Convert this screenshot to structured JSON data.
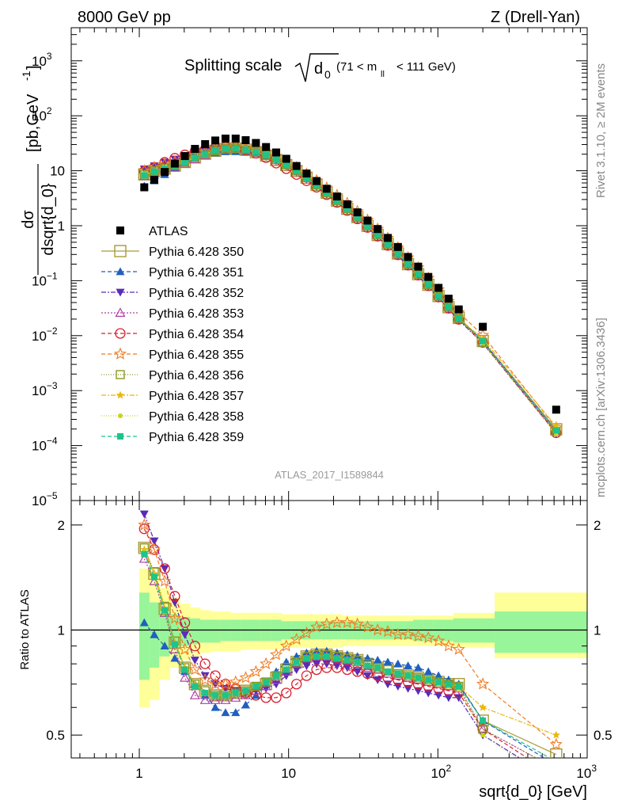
{
  "header": {
    "left": "8000 GeV pp",
    "right": "Z (Drell-Yan)"
  },
  "side": {
    "rivet": "Rivet 3.1.10, ≥ 2M events",
    "mcplots": "mcplots.cern.ch [arXiv:1306.3436]"
  },
  "watermark": "ATLAS_2017_I1589844",
  "chart_data": {
    "type": "scatter",
    "title": "Splitting scale √d0 (71 < m_ll < 111 GeV)",
    "title_main": "Splitting scale",
    "title_sym": "d",
    "title_sub": "0",
    "title_cut": "(71 < m",
    "title_cut_sub": "ll",
    "title_cut_end": "< 111 GeV)",
    "xlabel": "sqrt{d_0} [GeV]",
    "ylabel_top": "dσ / dsqrt{d_0} [pb,GeV⁻¹]",
    "ylabel_num": "dσ",
    "ylabel_den": "dsqrt{d_0}",
    "ylabel_unit": "[pb,GeV",
    "ylabel_unit_sup": "-1",
    "ylabel_unit_end": "]",
    "ylabel_ratio": "Ratio to ATLAS",
    "x_scale": "log",
    "y_scale": "log",
    "xlim": [
      0.35,
      1000
    ],
    "ylim": [
      1e-05,
      4000
    ],
    "ratio_ylim": [
      0.43,
      2.35
    ],
    "x_ticks": [
      {
        "value": 1,
        "label": "1"
      },
      {
        "value": 10,
        "label": "10"
      },
      {
        "value": 100,
        "label": "10",
        "sup": "2"
      },
      {
        "value": 1000,
        "label": "10",
        "sup": "3"
      }
    ],
    "y_ticks": [
      {
        "value": 1000,
        "label": "10",
        "sup": "3"
      },
      {
        "value": 100,
        "label": "10",
        "sup": "2"
      },
      {
        "value": 10,
        "label": "10"
      },
      {
        "value": 1,
        "label": "1"
      },
      {
        "value": 0.1,
        "label": "10",
        "sup": "−1"
      },
      {
        "value": 0.01,
        "label": "10",
        "sup": "−2"
      },
      {
        "value": 0.001,
        "label": "10",
        "sup": "−3"
      },
      {
        "value": 0.0001,
        "label": "10",
        "sup": "−4"
      },
      {
        "value": 1e-05,
        "label": "10",
        "sup": "−5"
      }
    ],
    "ratio_ticks": [
      {
        "value": 2,
        "label": "2"
      },
      {
        "value": 1,
        "label": "1"
      },
      {
        "value": 0.5,
        "label": "0.5"
      }
    ],
    "x": [
      1.08,
      1.26,
      1.48,
      1.73,
      2.02,
      2.36,
      2.76,
      3.23,
      3.78,
      4.42,
      5.16,
      6.04,
      7.06,
      8.26,
      9.65,
      11.3,
      13.2,
      15.4,
      18.0,
      21.1,
      24.7,
      28.9,
      33.8,
      39.5,
      46.2,
      54.0,
      63.1,
      73.8,
      86.3,
      101.0,
      118.0,
      138.0,
      200.0,
      620.0
    ],
    "atlas": [
      5.0,
      6.8,
      9.5,
      13.5,
      18.5,
      25.0,
      30.5,
      35.5,
      38.5,
      38.5,
      36.0,
      32.0,
      27.0,
      21.5,
      16.5,
      12.2,
      8.9,
      6.5,
      4.7,
      3.4,
      2.45,
      1.75,
      1.24,
      0.87,
      0.6,
      0.41,
      0.27,
      0.18,
      0.117,
      0.074,
      0.047,
      0.03,
      0.0145,
      0.00045
    ],
    "error_band": {
      "x_edges": [
        1.0,
        1.17,
        1.36,
        1.6,
        1.87,
        2.19,
        2.56,
        3.0,
        3.5,
        4.09,
        4.78,
        5.59,
        6.54,
        7.65,
        8.94,
        10.45,
        12.2,
        14.3,
        16.7,
        19.5,
        22.8,
        26.7,
        31.2,
        36.5,
        42.7,
        49.9,
        58.4,
        68.3,
        79.8,
        93.3,
        109.0,
        127.0,
        240.0,
        1000.0
      ],
      "inner_lo": [
        0.72,
        0.78,
        0.84,
        0.88,
        0.9,
        0.91,
        0.92,
        0.92,
        0.93,
        0.93,
        0.93,
        0.93,
        0.93,
        0.93,
        0.94,
        0.94,
        0.94,
        0.94,
        0.94,
        0.94,
        0.94,
        0.94,
        0.94,
        0.94,
        0.94,
        0.94,
        0.94,
        0.93,
        0.93,
        0.93,
        0.93,
        0.92,
        0.86
      ],
      "inner_hi": [
        1.28,
        1.2,
        1.14,
        1.11,
        1.09,
        1.08,
        1.07,
        1.07,
        1.07,
        1.07,
        1.07,
        1.07,
        1.07,
        1.07,
        1.06,
        1.06,
        1.06,
        1.06,
        1.06,
        1.06,
        1.06,
        1.06,
        1.06,
        1.06,
        1.06,
        1.06,
        1.06,
        1.07,
        1.07,
        1.07,
        1.07,
        1.08,
        1.13
      ],
      "outer_lo": [
        0.6,
        0.63,
        0.72,
        0.78,
        0.82,
        0.84,
        0.86,
        0.87,
        0.87,
        0.87,
        0.88,
        0.88,
        0.88,
        0.88,
        0.89,
        0.89,
        0.89,
        0.89,
        0.89,
        0.89,
        0.9,
        0.9,
        0.9,
        0.9,
        0.9,
        0.9,
        0.9,
        0.9,
        0.9,
        0.9,
        0.9,
        0.89,
        0.83
      ],
      "outer_hi": [
        1.5,
        1.44,
        1.32,
        1.24,
        1.19,
        1.16,
        1.14,
        1.13,
        1.13,
        1.12,
        1.12,
        1.12,
        1.12,
        1.12,
        1.11,
        1.11,
        1.11,
        1.11,
        1.11,
        1.11,
        1.1,
        1.1,
        1.1,
        1.1,
        1.1,
        1.1,
        1.1,
        1.1,
        1.1,
        1.1,
        1.1,
        1.12,
        1.28
      ]
    },
    "atlas_label": "ATLAS",
    "series": [
      {
        "name": "Pythia 6.428 350",
        "color": "#a89a3c",
        "marker": "square-open",
        "dash": "",
        "size": 7,
        "ratio": [
          1.72,
          1.45,
          1.15,
          0.92,
          0.78,
          0.7,
          0.67,
          0.65,
          0.65,
          0.66,
          0.67,
          0.68,
          0.7,
          0.73,
          0.77,
          0.81,
          0.84,
          0.85,
          0.85,
          0.84,
          0.83,
          0.82,
          0.8,
          0.78,
          0.77,
          0.76,
          0.74,
          0.73,
          0.72,
          0.71,
          0.7,
          0.7,
          0.55,
          0.44
        ]
      },
      {
        "name": "Pythia 6.428 351",
        "color": "#1f5fbf",
        "marker": "triangle-up",
        "dash": "5,3",
        "size": 5.5,
        "ratio": [
          1.05,
          0.97,
          0.9,
          0.83,
          0.76,
          0.7,
          0.65,
          0.6,
          0.58,
          0.58,
          0.61,
          0.65,
          0.7,
          0.76,
          0.81,
          0.84,
          0.86,
          0.87,
          0.87,
          0.86,
          0.85,
          0.84,
          0.83,
          0.82,
          0.81,
          0.8,
          0.79,
          0.78,
          0.76,
          0.74,
          0.72,
          0.7,
          0.55,
          0.41
        ]
      },
      {
        "name": "Pythia 6.428 352",
        "color": "#5a2bb8",
        "marker": "triangle-down",
        "dash": "6,2,2,2",
        "size": 5.5,
        "ratio": [
          2.15,
          1.8,
          1.5,
          1.2,
          0.97,
          0.82,
          0.74,
          0.7,
          0.68,
          0.67,
          0.66,
          0.67,
          0.68,
          0.7,
          0.74,
          0.77,
          0.79,
          0.8,
          0.8,
          0.79,
          0.78,
          0.76,
          0.74,
          0.72,
          0.7,
          0.69,
          0.68,
          0.67,
          0.66,
          0.65,
          0.64,
          0.64,
          0.5,
          0.37
        ]
      },
      {
        "name": "Pythia 6.428 353",
        "color": "#b03ea5",
        "marker": "triangle-up-open",
        "dash": "2,2",
        "size": 5.5,
        "ratio": [
          1.6,
          1.38,
          1.12,
          0.88,
          0.73,
          0.65,
          0.63,
          0.63,
          0.63,
          0.64,
          0.65,
          0.67,
          0.69,
          0.72,
          0.76,
          0.8,
          0.83,
          0.84,
          0.84,
          0.83,
          0.82,
          0.8,
          0.78,
          0.77,
          0.75,
          0.74,
          0.73,
          0.72,
          0.71,
          0.7,
          0.69,
          0.68,
          0.52,
          0.4
        ]
      },
      {
        "name": "Pythia 6.428 354",
        "color": "#d8202f",
        "marker": "circle-open",
        "dash": "5,3",
        "size": 6,
        "ratio": [
          1.95,
          1.7,
          1.5,
          1.25,
          1.05,
          0.9,
          0.8,
          0.74,
          0.7,
          0.68,
          0.66,
          0.65,
          0.64,
          0.64,
          0.66,
          0.7,
          0.74,
          0.77,
          0.78,
          0.78,
          0.77,
          0.76,
          0.75,
          0.74,
          0.73,
          0.72,
          0.71,
          0.7,
          0.69,
          0.68,
          0.67,
          0.66,
          0.52,
          0.38
        ]
      },
      {
        "name": "Pythia 6.428 355",
        "color": "#f07b22",
        "marker": "star-open",
        "dash": "5,3",
        "size": 7,
        "ratio": [
          2.0,
          1.7,
          1.38,
          1.08,
          0.88,
          0.77,
          0.72,
          0.7,
          0.7,
          0.71,
          0.73,
          0.76,
          0.8,
          0.85,
          0.9,
          0.94,
          0.98,
          1.02,
          1.04,
          1.05,
          1.05,
          1.04,
          1.02,
          1.0,
          0.99,
          0.97,
          0.97,
          0.96,
          0.95,
          0.93,
          0.9,
          0.88,
          0.7,
          0.47
        ]
      },
      {
        "name": "Pythia 6.428 356",
        "color": "#8a9a22",
        "marker": "square-open",
        "dash": "1,2",
        "size": 5,
        "ratio": [
          1.72,
          1.47,
          1.17,
          0.93,
          0.78,
          0.7,
          0.67,
          0.65,
          0.65,
          0.66,
          0.67,
          0.69,
          0.71,
          0.74,
          0.78,
          0.81,
          0.84,
          0.85,
          0.85,
          0.84,
          0.83,
          0.82,
          0.8,
          0.78,
          0.77,
          0.75,
          0.74,
          0.73,
          0.72,
          0.71,
          0.7,
          0.69,
          0.52,
          0.4
        ]
      },
      {
        "name": "Pythia 6.428 357",
        "color": "#e8b810",
        "marker": "star-small",
        "dash": "6,2,2,2",
        "size": 4,
        "ratio": [
          1.7,
          1.45,
          1.15,
          0.92,
          0.78,
          0.7,
          0.66,
          0.65,
          0.65,
          0.66,
          0.67,
          0.69,
          0.71,
          0.74,
          0.77,
          0.81,
          0.83,
          0.84,
          0.84,
          0.83,
          0.82,
          0.81,
          0.79,
          0.78,
          0.76,
          0.75,
          0.74,
          0.73,
          0.72,
          0.71,
          0.7,
          0.69,
          0.6,
          0.5
        ]
      },
      {
        "name": "Pythia 6.428 358",
        "color": "#c8d41a",
        "marker": "dot",
        "dash": "1,2",
        "size": 3,
        "ratio": [
          1.68,
          1.44,
          1.14,
          0.91,
          0.77,
          0.69,
          0.66,
          0.65,
          0.65,
          0.66,
          0.67,
          0.69,
          0.71,
          0.74,
          0.77,
          0.81,
          0.83,
          0.84,
          0.84,
          0.83,
          0.82,
          0.81,
          0.79,
          0.77,
          0.76,
          0.75,
          0.73,
          0.72,
          0.71,
          0.7,
          0.69,
          0.68,
          0.5,
          0.36
        ]
      },
      {
        "name": "Pythia 6.428 359",
        "color": "#1ec48a",
        "marker": "square",
        "dash": "5,3",
        "size": 4,
        "ratio": [
          1.65,
          1.42,
          1.14,
          0.91,
          0.77,
          0.69,
          0.66,
          0.65,
          0.65,
          0.66,
          0.67,
          0.69,
          0.71,
          0.74,
          0.77,
          0.81,
          0.83,
          0.84,
          0.84,
          0.83,
          0.82,
          0.81,
          0.79,
          0.78,
          0.76,
          0.75,
          0.74,
          0.73,
          0.72,
          0.71,
          0.7,
          0.69,
          0.55,
          0.42
        ]
      }
    ]
  }
}
